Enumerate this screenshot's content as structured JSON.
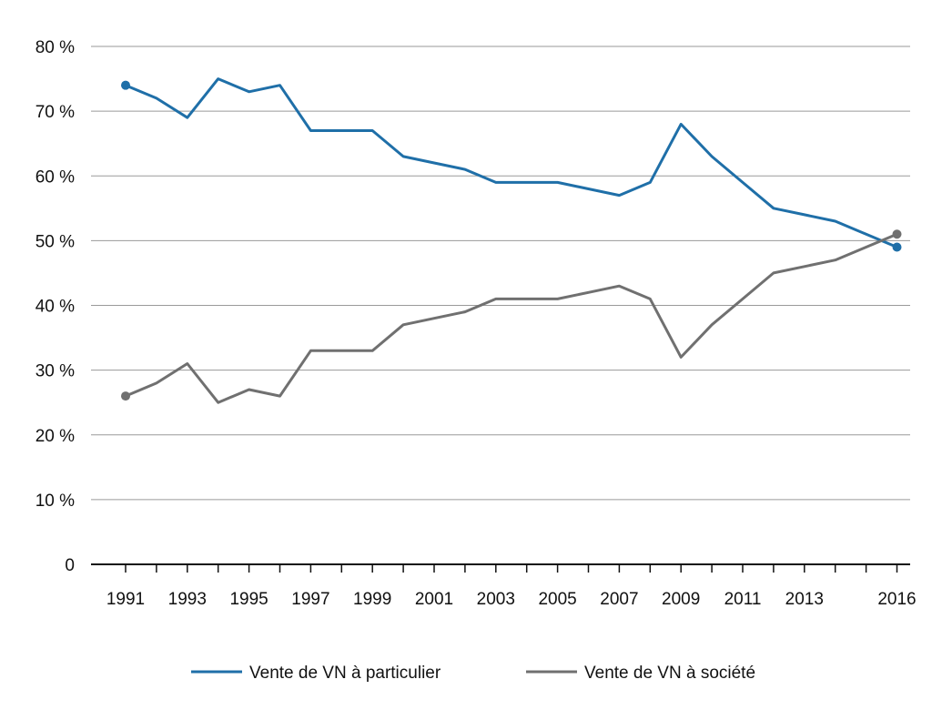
{
  "chart_data": {
    "type": "line",
    "title": "",
    "xlabel": "",
    "ylabel": "",
    "x": [
      1991,
      1992,
      1993,
      1994,
      1995,
      1996,
      1997,
      1998,
      1999,
      2000,
      2001,
      2002,
      2003,
      2004,
      2005,
      2006,
      2007,
      2008,
      2009,
      2010,
      2011,
      2012,
      2013,
      2014,
      2015,
      2016
    ],
    "xticks": [
      "1991",
      "1993",
      "1995",
      "1997",
      "1999",
      "2001",
      "2003",
      "2005",
      "2007",
      "2009",
      "2011",
      "2013",
      "2016"
    ],
    "ylim": [
      0,
      80
    ],
    "yticks": [
      {
        "value": 0,
        "label": "0"
      },
      {
        "value": 10,
        "label": "10 %"
      },
      {
        "value": 20,
        "label": "20 %"
      },
      {
        "value": 30,
        "label": "30 %"
      },
      {
        "value": 40,
        "label": "40 %"
      },
      {
        "value": 50,
        "label": "50 %"
      },
      {
        "value": 60,
        "label": "60 %"
      },
      {
        "value": 70,
        "label": "70 %"
      },
      {
        "value": 80,
        "label": "80 %"
      }
    ],
    "grid": true,
    "legend_position": "bottom",
    "series": [
      {
        "name": "Vente de VN à particulier",
        "color": "#1f6fa8",
        "values": [
          74,
          72,
          69,
          75,
          73,
          74,
          67,
          67,
          67,
          63,
          62,
          61,
          59,
          59,
          59,
          58,
          57,
          59,
          68,
          63,
          59,
          55,
          54,
          53,
          51,
          49
        ]
      },
      {
        "name": "Vente de VN à société",
        "color": "#707070",
        "values": [
          26,
          28,
          31,
          25,
          27,
          26,
          33,
          33,
          33,
          37,
          38,
          39,
          41,
          41,
          41,
          42,
          43,
          41,
          32,
          37,
          41,
          45,
          46,
          47,
          49,
          51
        ]
      }
    ]
  }
}
